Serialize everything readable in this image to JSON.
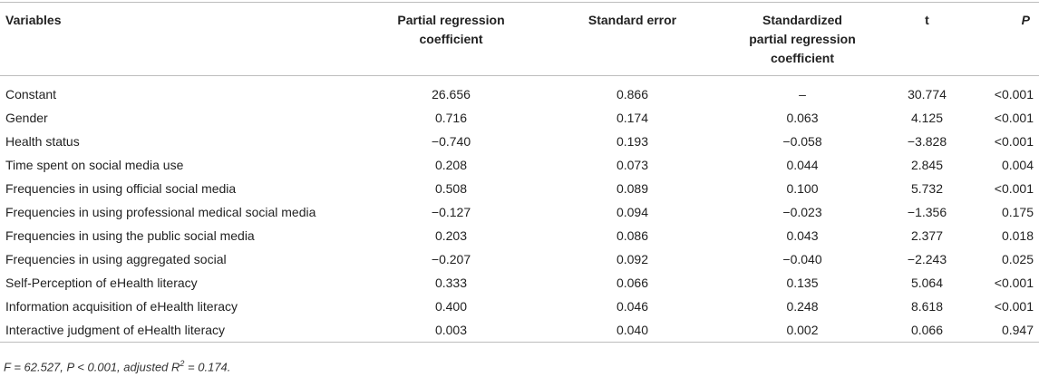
{
  "table": {
    "headers": [
      "Variables",
      "Partial regression coefficient",
      "Standard error",
      "Standardized partial regression coefficient",
      "t",
      "P"
    ],
    "rows": [
      [
        "Constant",
        "26.656",
        "0.866",
        "–",
        "30.774",
        "<0.001"
      ],
      [
        "Gender",
        "0.716",
        "0.174",
        "0.063",
        "4.125",
        "<0.001"
      ],
      [
        "Health status",
        "−0.740",
        "0.193",
        "−0.058",
        "−3.828",
        "<0.001"
      ],
      [
        "Time spent on social media use",
        "0.208",
        "0.073",
        "0.044",
        "2.845",
        "0.004"
      ],
      [
        "Frequencies in using official social media",
        "0.508",
        "0.089",
        "0.100",
        "5.732",
        "<0.001"
      ],
      [
        "Frequencies in using professional medical social media",
        "−0.127",
        "0.094",
        "−0.023",
        "−1.356",
        "0.175"
      ],
      [
        "Frequencies in using the public social media",
        "0.203",
        "0.086",
        "0.043",
        "2.377",
        "0.018"
      ],
      [
        "Frequencies in using aggregated social",
        "−0.207",
        "0.092",
        "−0.040",
        "−2.243",
        "0.025"
      ],
      [
        "Self-Perception of eHealth literacy",
        "0.333",
        "0.066",
        "0.135",
        "5.064",
        "<0.001"
      ],
      [
        "Information acquisition of eHealth literacy",
        "0.400",
        "0.046",
        "0.248",
        "8.618",
        "<0.001"
      ],
      [
        "Interactive judgment of eHealth literacy",
        "0.003",
        "0.040",
        "0.002",
        "0.066",
        "0.947"
      ]
    ]
  },
  "footnote": {
    "prefix": "F = 62.527, P < 0.001, adjusted R",
    "sup": "2",
    "suffix": " = 0.174."
  }
}
